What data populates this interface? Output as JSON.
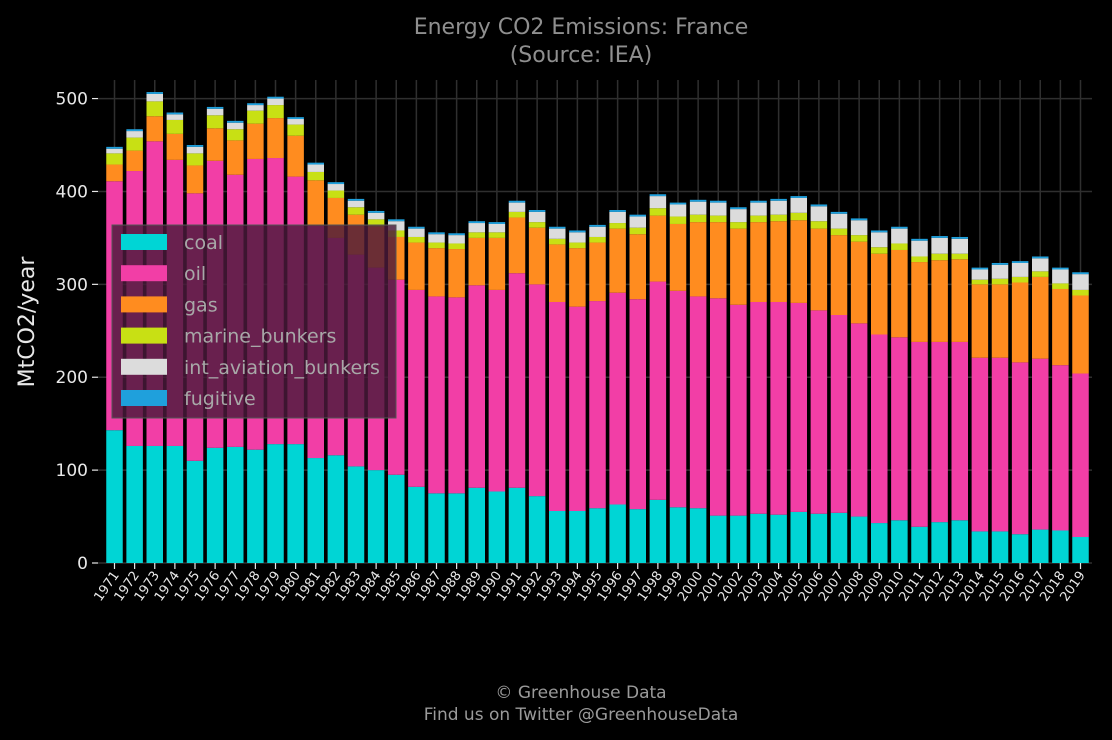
{
  "chart_data": {
    "type": "bar",
    "stacked": true,
    "title": "Energy CO2 Emissions: France",
    "subtitle": "(Source: IEA)",
    "xlabel": "",
    "ylabel": "MtCO2/year",
    "ylim": [
      0,
      520
    ],
    "yticks": [
      0,
      100,
      200,
      300,
      400,
      500
    ],
    "grid": true,
    "legend_position": "center-left",
    "categories": [
      "1971",
      "1972",
      "1973",
      "1974",
      "1975",
      "1976",
      "1977",
      "1978",
      "1979",
      "1980",
      "1981",
      "1982",
      "1983",
      "1984",
      "1985",
      "1986",
      "1987",
      "1988",
      "1989",
      "1990",
      "1991",
      "1992",
      "1993",
      "1994",
      "1995",
      "1996",
      "1997",
      "1998",
      "1999",
      "2000",
      "2001",
      "2002",
      "2003",
      "2004",
      "2005",
      "2006",
      "2007",
      "2008",
      "2009",
      "2010",
      "2011",
      "2012",
      "2013",
      "2014",
      "2015",
      "2016",
      "2017",
      "2018",
      "2019"
    ],
    "series": [
      {
        "name": "coal",
        "color": "#00d5d5",
        "values": [
          143,
          126,
          126,
          126,
          110,
          124,
          125,
          122,
          128,
          128,
          113,
          116,
          104,
          100,
          95,
          82,
          75,
          75,
          81,
          77,
          81,
          72,
          56,
          56,
          59,
          63,
          58,
          68,
          60,
          59,
          51,
          51,
          53,
          52,
          55,
          53,
          54,
          50,
          43,
          46,
          39,
          44,
          46,
          34,
          34,
          31,
          36,
          35,
          28
        ]
      },
      {
        "name": "oil",
        "color": "#f23ea6",
        "values": [
          268,
          296,
          328,
          308,
          288,
          309,
          293,
          313,
          308,
          288,
          250,
          234,
          228,
          218,
          210,
          212,
          212,
          211,
          218,
          217,
          231,
          228,
          225,
          220,
          223,
          228,
          226,
          235,
          233,
          228,
          234,
          227,
          228,
          229,
          225,
          219,
          213,
          208,
          203,
          197,
          199,
          194,
          192,
          187,
          187,
          185,
          184,
          178,
          176
        ]
      },
      {
        "name": "gas",
        "color": "#ff8c1f",
        "values": [
          18,
          22,
          27,
          28,
          30,
          35,
          37,
          38,
          43,
          44,
          49,
          43,
          43,
          44,
          46,
          51,
          52,
          52,
          51,
          56,
          60,
          61,
          62,
          63,
          63,
          69,
          70,
          71,
          72,
          80,
          82,
          82,
          86,
          87,
          89,
          88,
          86,
          88,
          87,
          94,
          86,
          88,
          89,
          79,
          79,
          86,
          88,
          82,
          84
        ]
      },
      {
        "name": "marine_bunkers",
        "color": "#c8e014",
        "values": [
          12,
          14,
          16,
          15,
          13,
          14,
          12,
          14,
          14,
          12,
          9,
          8,
          8,
          8,
          7,
          6,
          6,
          6,
          6,
          6,
          6,
          6,
          6,
          6,
          6,
          6,
          7,
          8,
          8,
          8,
          7,
          7,
          7,
          7,
          8,
          8,
          7,
          7,
          7,
          7,
          6,
          7,
          6,
          5,
          6,
          6,
          6,
          6,
          6
        ]
      },
      {
        "name": "int_aviation_bunkers",
        "color": "#dcdcdc",
        "values": [
          5,
          7,
          8,
          6,
          7,
          7,
          7,
          6,
          7,
          6,
          8,
          7,
          7,
          7,
          10,
          9,
          9,
          9,
          10,
          9,
          10,
          11,
          11,
          11,
          11,
          12,
          12,
          13,
          13,
          14,
          14,
          14,
          14,
          15,
          16,
          16,
          16,
          16,
          16,
          16,
          17,
          17,
          16,
          11,
          15,
          15,
          14,
          15,
          17
        ]
      },
      {
        "name": "fugitive",
        "color": "#1fa0dc",
        "values": [
          2,
          2,
          2,
          2,
          2,
          2,
          2,
          2,
          2,
          2,
          2,
          2,
          2,
          2,
          2,
          2,
          2,
          2,
          2,
          2,
          2,
          2,
          2,
          2,
          2,
          2,
          2,
          2,
          2,
          2,
          2,
          2,
          2,
          2,
          2,
          2,
          2,
          2,
          2,
          2,
          2,
          2,
          2,
          2,
          2,
          2,
          2,
          2,
          2
        ]
      }
    ]
  },
  "footer": {
    "line1": "© Greenhouse Data",
    "line2": "Find us on Twitter @GreenhouseData"
  }
}
